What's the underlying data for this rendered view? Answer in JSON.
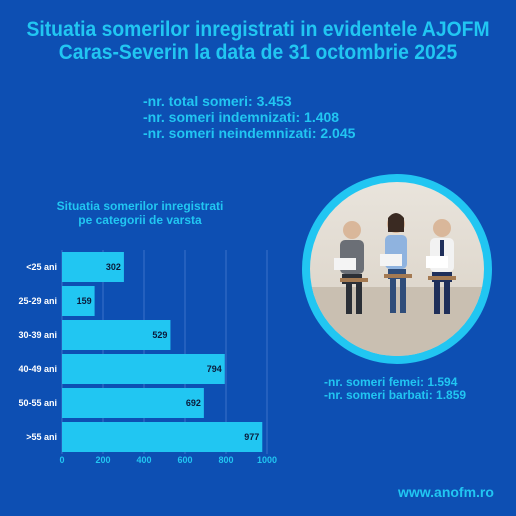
{
  "header": {
    "title_line1": "Situatia somerilor inregistrati in evidentele AJOFM",
    "title_line2": "Caras-Severin la data de 31 octombrie 2025"
  },
  "totals": {
    "total": "-nr. total someri: 3.453",
    "indemnizati": "-nr. someri indemnizati: 1.408",
    "neindemnizati": "-nr. someri neindemnizati: 2.045"
  },
  "gender": {
    "femei": "-nr. someri femei: 1.594",
    "barbati": "-nr. someri barbati: 1.859"
  },
  "website": "www.anofm.ro",
  "colors": {
    "background": "#0d4fb3",
    "accent": "#21c6f2",
    "bar_label": "#0a1a3a"
  },
  "photo": {
    "icon": "people-sitting-photo"
  },
  "chart_data": {
    "type": "bar",
    "orientation": "horizontal",
    "title_line1": "Situatia somerilor inregistrati",
    "title_line2": "pe categorii de varsta",
    "categories": [
      "<25 ani",
      "25-29 ani",
      "30-39 ani",
      "40-49 ani",
      "50-55 ani",
      ">55 ani"
    ],
    "values": [
      302,
      159,
      529,
      794,
      692,
      977
    ],
    "xlim": [
      0,
      1000
    ],
    "xticks": [
      0,
      200,
      400,
      600,
      800,
      1000
    ],
    "grid": true,
    "legend": "none"
  }
}
